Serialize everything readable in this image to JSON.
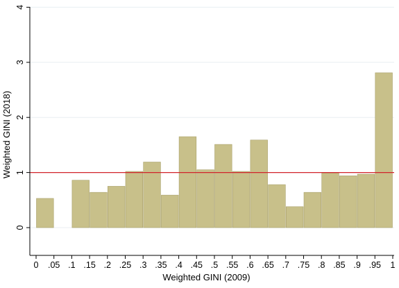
{
  "chart_data": {
    "type": "bar",
    "xlabel": "Weighted GINI (2009)",
    "ylabel": "Weighted GINI (2018)",
    "bin_width": 0.05,
    "bins": [
      {
        "x0": 0.0,
        "value": 0.53
      },
      {
        "x0": 0.1,
        "value": 0.86
      },
      {
        "x0": 0.15,
        "value": 0.64
      },
      {
        "x0": 0.2,
        "value": 0.75
      },
      {
        "x0": 0.25,
        "value": 1.02
      },
      {
        "x0": 0.3,
        "value": 1.19
      },
      {
        "x0": 0.35,
        "value": 0.59
      },
      {
        "x0": 0.4,
        "value": 1.65
      },
      {
        "x0": 0.45,
        "value": 1.05
      },
      {
        "x0": 0.5,
        "value": 1.51
      },
      {
        "x0": 0.55,
        "value": 1.02
      },
      {
        "x0": 0.6,
        "value": 1.59
      },
      {
        "x0": 0.65,
        "value": 0.78
      },
      {
        "x0": 0.7,
        "value": 0.38
      },
      {
        "x0": 0.75,
        "value": 0.64
      },
      {
        "x0": 0.8,
        "value": 0.99
      },
      {
        "x0": 0.85,
        "value": 0.94
      },
      {
        "x0": 0.9,
        "value": 0.97
      },
      {
        "x0": 0.95,
        "value": 2.81
      }
    ],
    "xlim": [
      0,
      1
    ],
    "ylim": [
      0,
      4
    ],
    "x_ticks": [
      {
        "value": 0.0,
        "label": "0"
      },
      {
        "value": 0.05,
        "label": ".05"
      },
      {
        "value": 0.1,
        "label": ".1"
      },
      {
        "value": 0.15,
        "label": ".15"
      },
      {
        "value": 0.2,
        "label": ".2"
      },
      {
        "value": 0.25,
        "label": ".25"
      },
      {
        "value": 0.3,
        "label": ".3"
      },
      {
        "value": 0.35,
        "label": ".35"
      },
      {
        "value": 0.4,
        "label": ".4"
      },
      {
        "value": 0.45,
        "label": ".45"
      },
      {
        "value": 0.5,
        "label": ".5"
      },
      {
        "value": 0.55,
        "label": ".55"
      },
      {
        "value": 0.6,
        "label": ".6"
      },
      {
        "value": 0.65,
        "label": ".65"
      },
      {
        "value": 0.7,
        "label": ".7"
      },
      {
        "value": 0.75,
        "label": ".75"
      },
      {
        "value": 0.8,
        "label": ".8"
      },
      {
        "value": 0.85,
        "label": ".85"
      },
      {
        "value": 0.9,
        "label": ".9"
      },
      {
        "value": 0.95,
        "label": ".95"
      },
      {
        "value": 1.0,
        "label": "1"
      }
    ],
    "y_ticks": [
      {
        "value": 0,
        "label": "0"
      },
      {
        "value": 1,
        "label": "1"
      },
      {
        "value": 2,
        "label": "2"
      },
      {
        "value": 3,
        "label": "3"
      },
      {
        "value": 4,
        "label": "4"
      }
    ],
    "reference_line": {
      "y": 1,
      "color": "#d2232a"
    },
    "bar_color": "#c8c08a",
    "bar_edge_color": "#a9a06a",
    "grid": true,
    "grid_color": "#e8eef2"
  }
}
